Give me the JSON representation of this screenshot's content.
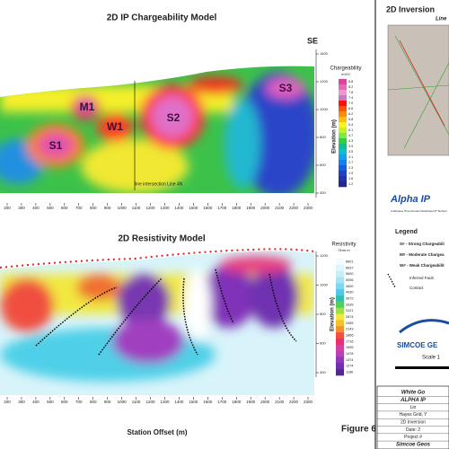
{
  "ip_panel": {
    "title": "2D IP Chargeability Model",
    "direction": "SE",
    "anomalies": [
      "S1",
      "M1",
      "W1",
      "S2",
      "S3"
    ],
    "intersection_label": "line intersection Line 4N",
    "colorbar_title": "Chargeability",
    "colorbar_unit": "mV/V",
    "colorbar_labels": [
      "8.8",
      "8.2",
      "7.8",
      "7.4",
      "7.0",
      "6.6",
      "6.2",
      "5.8",
      "5.4",
      "5.1",
      "4.7",
      "4.3",
      "3.9",
      "3.5",
      "3.1",
      "2.7",
      "2.3",
      "1.9",
      "1.6",
      "1.2"
    ],
    "y_axis_label": "Elevation (m)",
    "y_ticks": [
      1400,
      1200,
      1000,
      800,
      600,
      400
    ],
    "x_ticks": [
      200,
      300,
      400,
      500,
      600,
      700,
      800,
      900,
      1000,
      1100,
      1200,
      1300,
      1400,
      1500,
      1600,
      1700,
      1800,
      1900,
      2000,
      2100,
      2200,
      2300
    ]
  },
  "res_panel": {
    "title": "2D Resistivity Model",
    "colorbar_title": "Resistivity",
    "colorbar_unit": "Ohm.m",
    "colorbar_labels": [
      "8601",
      "6637",
      "5600",
      "5056",
      "4600",
      "4030",
      "3672",
      "3339",
      "3121",
      "2874",
      "2465",
      "2143",
      "1866",
      "1716",
      "1595",
      "1478",
      "1374",
      "1274",
      "1186"
    ],
    "y_axis_label": "Elevation (m)",
    "y_ticks": [
      1200,
      1000,
      800,
      600,
      400
    ],
    "x_ticks": [
      200,
      300,
      400,
      500,
      600,
      700,
      800,
      900,
      1000,
      1100,
      1200,
      1300,
      1400,
      1500,
      1600,
      1700,
      1800,
      1900,
      2000,
      2100,
      2200,
      2300
    ],
    "x_axis_label": "Station Offset (m)",
    "figure_label": "Figure 6"
  },
  "side": {
    "title": "2D Inversion",
    "subtitle": "Line",
    "logo": "Alpha IP",
    "logo_tagline": "A Wireless Time Domain Distributed IP Technol",
    "legend_title": "Legend",
    "legend_items": [
      "S# - Strong Chargeabili",
      "M# - Moderate Chargea",
      "W# - Weak Chargeabilit"
    ],
    "fault_label": "Inferred Fault",
    "contact_label": "Contact",
    "company": "SIMCOE GE",
    "scale": "Scale 1",
    "title_block": [
      "White Go",
      "ALPHA IP",
      "Lin",
      "Hayes Grid, Y",
      "2D Inversion",
      "Date: 2",
      "Project #",
      "Simcoe Geos"
    ]
  }
}
